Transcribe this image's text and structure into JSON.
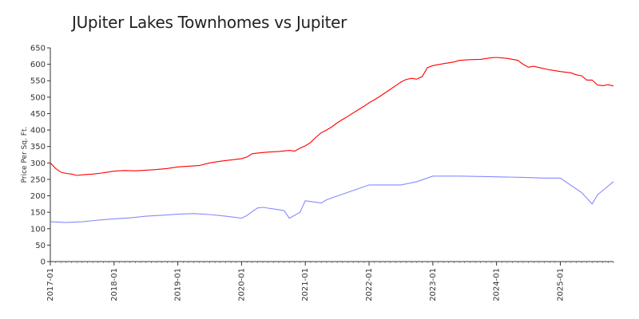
{
  "chart_data": {
    "type": "line",
    "title": "JUpiter Lakes Townhomes vs Jupiter",
    "xlabel": "",
    "ylabel": "Price Per Sq. Ft.",
    "ylim": [
      0,
      650
    ],
    "yticks": [
      0,
      50,
      100,
      150,
      200,
      250,
      300,
      350,
      400,
      450,
      500,
      550,
      600,
      650
    ],
    "xlim": [
      "2017-01",
      "2025-11"
    ],
    "xticks": [
      "2017-01",
      "2018-01",
      "2019-01",
      "2020-01",
      "2021-01",
      "2022-01",
      "2023-01",
      "2024-01",
      "2025-01"
    ],
    "grid": false,
    "legend": "none",
    "series": [
      {
        "color": "#ff0000",
        "points": [
          [
            "2017-01",
            300
          ],
          [
            "2017-02",
            283
          ],
          [
            "2017-03",
            272
          ],
          [
            "2017-04",
            268
          ],
          [
            "2017-05",
            266
          ],
          [
            "2017-06",
            262
          ],
          [
            "2017-07",
            264
          ],
          [
            "2017-09",
            266
          ],
          [
            "2017-11",
            270
          ],
          [
            "2018-01",
            275
          ],
          [
            "2018-03",
            277
          ],
          [
            "2018-05",
            276
          ],
          [
            "2018-07",
            278
          ],
          [
            "2018-09",
            280
          ],
          [
            "2018-11",
            283
          ],
          [
            "2019-01",
            288
          ],
          [
            "2019-03",
            290
          ],
          [
            "2019-05",
            292
          ],
          [
            "2019-07",
            300
          ],
          [
            "2019-09",
            305
          ],
          [
            "2019-11",
            309
          ],
          [
            "2020-01",
            313
          ],
          [
            "2020-02",
            318
          ],
          [
            "2020-03",
            328
          ],
          [
            "2020-04",
            330
          ],
          [
            "2020-06",
            333
          ],
          [
            "2020-08",
            335
          ],
          [
            "2020-10",
            338
          ],
          [
            "2020-11",
            336
          ],
          [
            "2020-12",
            345
          ],
          [
            "2021-01",
            352
          ],
          [
            "2021-02",
            362
          ],
          [
            "2021-03",
            378
          ],
          [
            "2021-04",
            392
          ],
          [
            "2021-05",
            400
          ],
          [
            "2021-06",
            410
          ],
          [
            "2021-07",
            422
          ],
          [
            "2021-08",
            432
          ],
          [
            "2021-09",
            442
          ],
          [
            "2021-10",
            452
          ],
          [
            "2021-11",
            462
          ],
          [
            "2021-12",
            472
          ],
          [
            "2022-01",
            483
          ],
          [
            "2022-02",
            492
          ],
          [
            "2022-03",
            502
          ],
          [
            "2022-04",
            513
          ],
          [
            "2022-05",
            524
          ],
          [
            "2022-06",
            535
          ],
          [
            "2022-07",
            546
          ],
          [
            "2022-08",
            554
          ],
          [
            "2022-09",
            557
          ],
          [
            "2022-10",
            555
          ],
          [
            "2022-11",
            563
          ],
          [
            "2022-12",
            590
          ],
          [
            "2023-01",
            596
          ],
          [
            "2023-03",
            602
          ],
          [
            "2023-05",
            607
          ],
          [
            "2023-06",
            612
          ],
          [
            "2023-08",
            614
          ],
          [
            "2023-10",
            615
          ],
          [
            "2023-12",
            620
          ],
          [
            "2024-01",
            621
          ],
          [
            "2024-03",
            618
          ],
          [
            "2024-05",
            612
          ],
          [
            "2024-06",
            600
          ],
          [
            "2024-07",
            591
          ],
          [
            "2024-08",
            594
          ],
          [
            "2024-09",
            590
          ],
          [
            "2024-11",
            583
          ],
          [
            "2025-01",
            578
          ],
          [
            "2025-03",
            574
          ],
          [
            "2025-04",
            568
          ],
          [
            "2025-05",
            565
          ],
          [
            "2025-06",
            552
          ],
          [
            "2025-07",
            552
          ],
          [
            "2025-08",
            537
          ],
          [
            "2025-09",
            535
          ],
          [
            "2025-10",
            538
          ],
          [
            "2025-11",
            534
          ]
        ]
      },
      {
        "color": "#8888ff",
        "points": [
          [
            "2017-01",
            121
          ],
          [
            "2017-04",
            119
          ],
          [
            "2017-07",
            121
          ],
          [
            "2017-10",
            126
          ],
          [
            "2018-01",
            130
          ],
          [
            "2018-04",
            133
          ],
          [
            "2018-07",
            138
          ],
          [
            "2018-10",
            141
          ],
          [
            "2019-01",
            144
          ],
          [
            "2019-04",
            146
          ],
          [
            "2019-07",
            143
          ],
          [
            "2019-10",
            138
          ],
          [
            "2020-01",
            132
          ],
          [
            "2020-02",
            140
          ],
          [
            "2020-03",
            152
          ],
          [
            "2020-04",
            163
          ],
          [
            "2020-05",
            165
          ],
          [
            "2020-08",
            158
          ],
          [
            "2020-09",
            155
          ],
          [
            "2020-10",
            132
          ],
          [
            "2020-12",
            150
          ],
          [
            "2021-01",
            185
          ],
          [
            "2021-04",
            178
          ],
          [
            "2021-05",
            188
          ],
          [
            "2021-08",
            205
          ],
          [
            "2021-11",
            222
          ],
          [
            "2022-01",
            233
          ],
          [
            "2022-04",
            233
          ],
          [
            "2022-07",
            233
          ],
          [
            "2022-10",
            243
          ],
          [
            "2023-01",
            260
          ],
          [
            "2023-06",
            260
          ],
          [
            "2023-12",
            258
          ],
          [
            "2024-06",
            256
          ],
          [
            "2024-10",
            254
          ],
          [
            "2025-01",
            254
          ],
          [
            "2025-05",
            210
          ],
          [
            "2025-07",
            175
          ],
          [
            "2025-08",
            203
          ],
          [
            "2025-11",
            243
          ]
        ]
      }
    ]
  }
}
